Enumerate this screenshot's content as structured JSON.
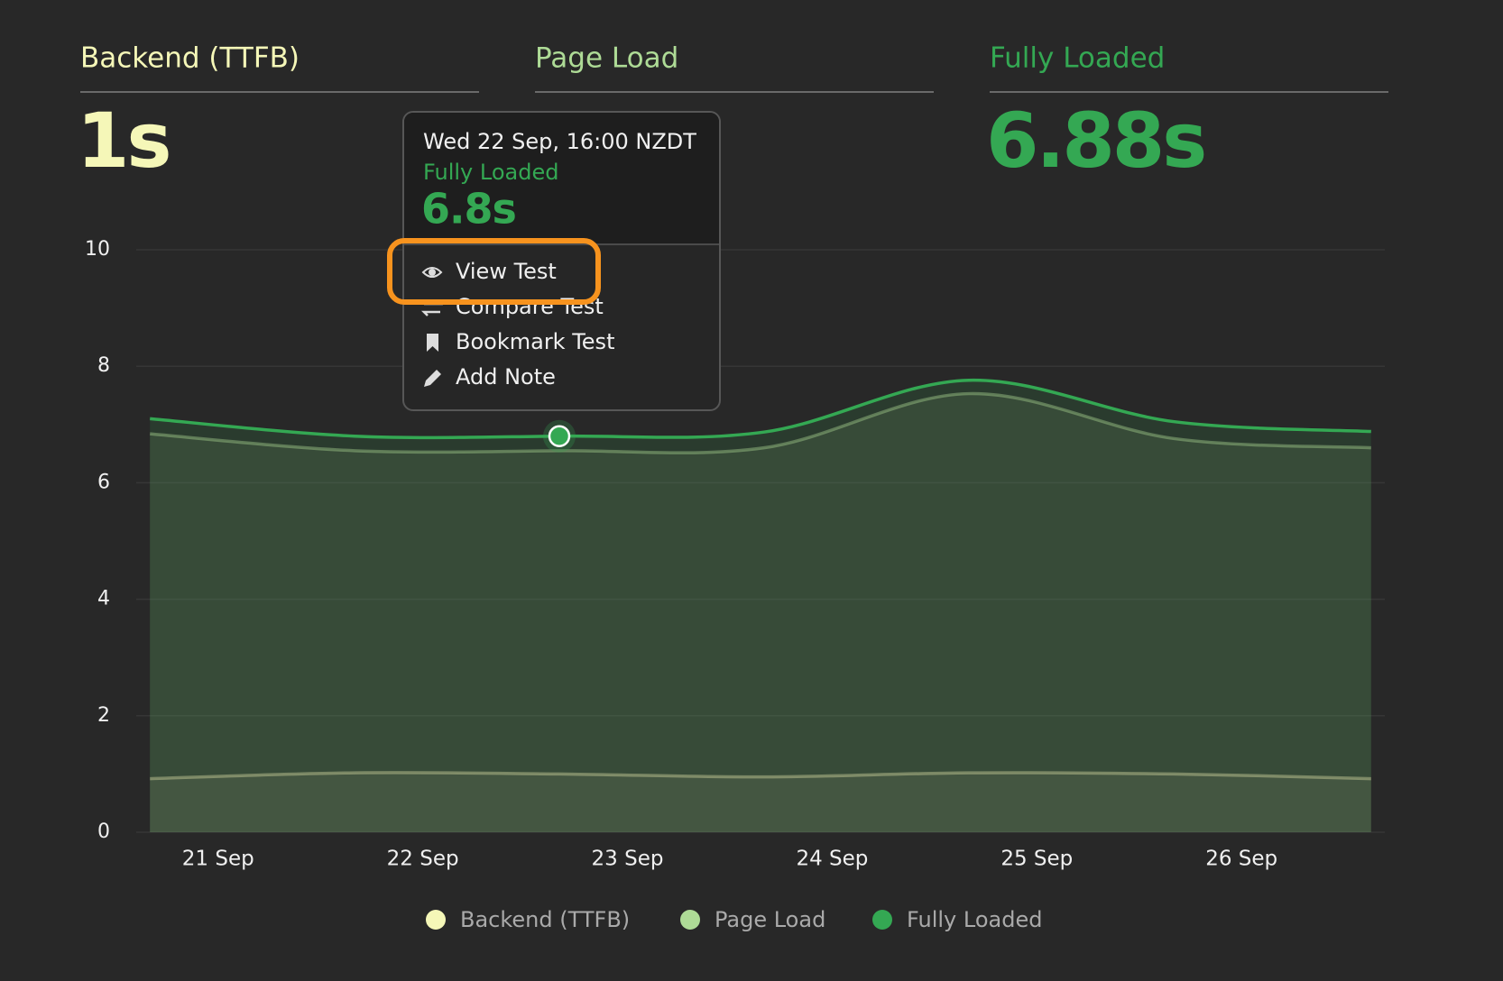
{
  "metrics": [
    {
      "label": "Backend (TTFB)",
      "value": "1s"
    },
    {
      "label": "Page Load"
    },
    {
      "label": "Fully Loaded",
      "value": "6.88s"
    }
  ],
  "chart_data": {
    "type": "area",
    "x": [
      20.667,
      21.667,
      22.667,
      23.667,
      24.667,
      25.667,
      26.633
    ],
    "xlim": [
      20.6,
      26.7
    ],
    "xticks": [
      {
        "value": 21,
        "label": "21 Sep"
      },
      {
        "value": 22,
        "label": "22 Sep"
      },
      {
        "value": 23,
        "label": "23 Sep"
      },
      {
        "value": 24,
        "label": "24 Sep"
      },
      {
        "value": 25,
        "label": "25 Sep"
      },
      {
        "value": 26,
        "label": "26 Sep"
      }
    ],
    "ylim": [
      0,
      10
    ],
    "yticks": [
      0,
      2,
      4,
      6,
      8,
      10
    ],
    "grid": true,
    "series": [
      {
        "name": "Backend (TTFB)",
        "color": "#f5f7b8",
        "values": [
          0.92,
          1.02,
          1.0,
          0.95,
          1.02,
          1.0,
          0.92
        ]
      },
      {
        "name": "Page Load",
        "color": "#aedb96",
        "values": [
          6.84,
          6.55,
          6.55,
          6.6,
          7.53,
          6.76,
          6.6
        ]
      },
      {
        "name": "Fully Loaded",
        "color": "#34a853",
        "values": [
          7.1,
          6.8,
          6.8,
          6.87,
          7.76,
          7.05,
          6.88
        ]
      }
    ]
  },
  "tooltip": {
    "date": "Wed 22 Sep, 16:00 NZDT",
    "series": "Fully Loaded",
    "value": "6.8s",
    "menu": [
      "View Test",
      "Compare Test",
      "Bookmark Test",
      "Add Note"
    ]
  }
}
